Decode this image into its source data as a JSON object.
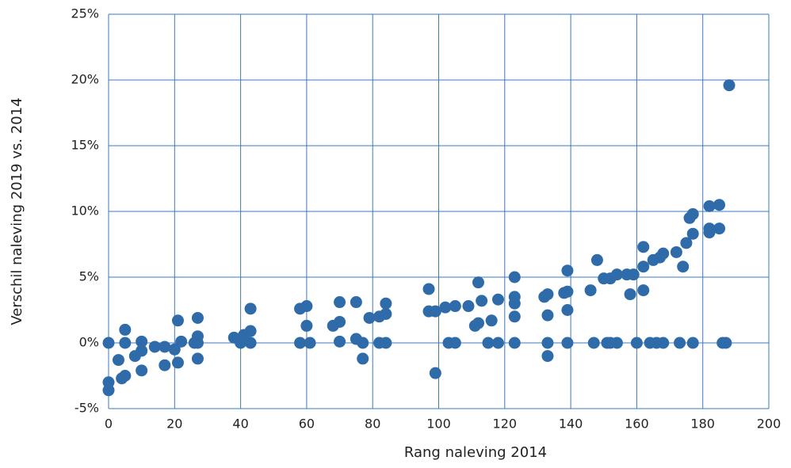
{
  "chart_data": {
    "type": "scatter",
    "x_label": "Rang naleving 2014",
    "y_label": "Verschil naleving 2019 vs. 2014",
    "color": "#2e6ba8",
    "grid": true,
    "xlim": [
      0,
      200
    ],
    "xticks": [
      0,
      20,
      40,
      60,
      80,
      100,
      120,
      140,
      160,
      180,
      200
    ],
    "ylim": [
      -5,
      25
    ],
    "yticks": [
      {
        "value": -5,
        "label": "-5%"
      },
      {
        "value": 0,
        "label": "0%"
      },
      {
        "value": 5,
        "label": "5%"
      },
      {
        "value": 10,
        "label": "10%"
      },
      {
        "value": 15,
        "label": "15%"
      },
      {
        "value": 20,
        "label": "20%"
      },
      {
        "value": 25,
        "label": "25%"
      }
    ],
    "x": [
      0,
      0,
      0,
      3,
      4,
      5,
      5,
      5,
      8,
      10,
      10,
      10,
      14,
      17,
      17,
      20,
      21,
      22,
      21,
      26,
      27,
      27,
      27,
      27,
      38,
      40,
      41,
      43,
      43,
      43,
      58,
      58,
      60,
      60,
      61,
      68,
      70,
      70,
      70,
      75,
      75,
      77,
      77,
      79,
      82,
      84,
      82,
      84,
      84,
      97,
      97,
      99,
      99,
      102,
      103,
      105,
      105,
      109,
      111,
      112,
      112,
      113,
      115,
      116,
      118,
      118,
      123,
      123,
      123,
      123,
      123,
      132,
      133,
      133,
      133,
      133,
      138,
      139,
      139,
      139,
      139,
      146,
      147,
      148,
      150,
      151,
      152,
      152,
      154,
      154,
      157,
      158,
      159,
      160,
      162,
      162,
      162,
      164,
      165,
      166,
      167,
      168,
      168,
      172,
      173,
      174,
      175,
      176,
      177,
      177,
      177,
      182,
      182,
      182,
      185,
      185,
      186,
      187,
      188
    ],
    "values": [
      0,
      -3.0,
      -3.6,
      -1.3,
      -2.7,
      -2.5,
      0,
      1.0,
      -1.0,
      0.1,
      -0.6,
      -2.1,
      -0.3,
      -0.3,
      -1.7,
      -0.5,
      -1.5,
      0.1,
      1.7,
      0,
      0.5,
      0,
      1.9,
      -1.2,
      0.4,
      0,
      0.6,
      0,
      0.9,
      2.6,
      0,
      2.6,
      2.8,
      1.3,
      0,
      1.3,
      1.6,
      3.1,
      0.1,
      3.1,
      0.3,
      0,
      -1.2,
      1.9,
      2.0,
      2.2,
      0,
      0,
      3.0,
      4.1,
      2.4,
      2.4,
      -2.3,
      2.7,
      0,
      0,
      2.8,
      2.8,
      1.3,
      1.5,
      4.6,
      3.2,
      0,
      1.7,
      0,
      3.3,
      5.0,
      3.5,
      3.0,
      2.0,
      0,
      3.5,
      3.7,
      2.1,
      0,
      -1.0,
      3.8,
      5.5,
      3.9,
      2.5,
      0,
      4.0,
      0,
      6.3,
      4.9,
      0,
      4.9,
      0,
      5.2,
      0,
      5.2,
      3.7,
      5.2,
      0,
      4.0,
      5.8,
      7.3,
      0,
      6.3,
      0,
      6.5,
      6.8,
      0,
      6.9,
      0,
      5.8,
      7.6,
      9.5,
      9.8,
      8.3,
      0,
      8.4,
      8.7,
      10.4,
      10.5,
      8.7,
      0,
      0,
      19.6
    ]
  }
}
